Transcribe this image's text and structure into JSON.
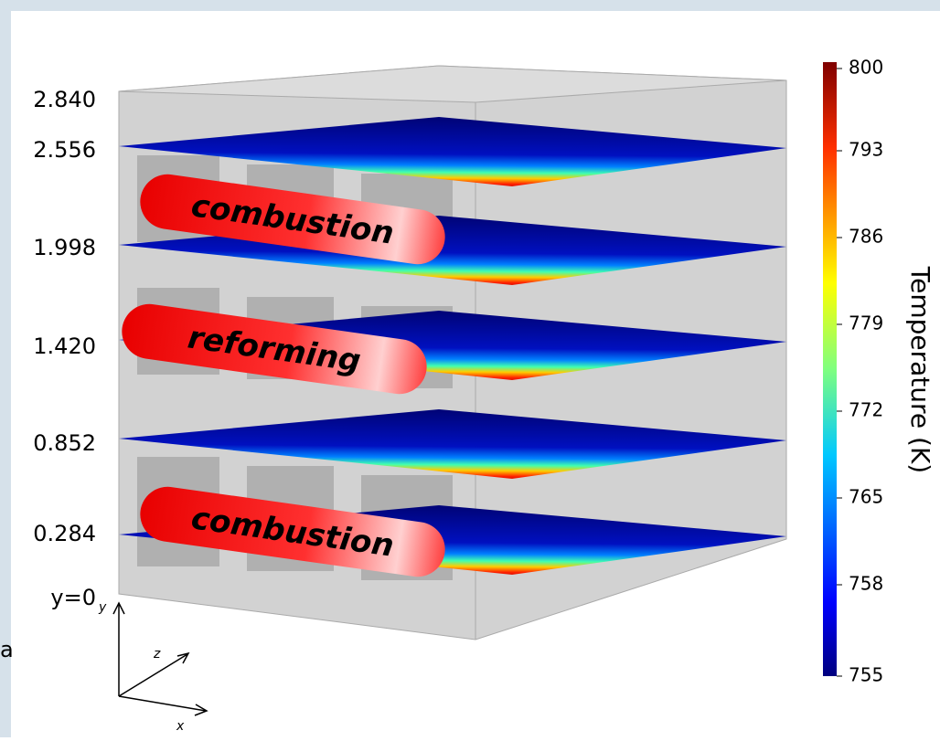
{
  "levels": [
    "2.840",
    "2.556",
    "1.998",
    "1.420",
    "0.852",
    "0.284"
  ],
  "origin_label": "y=0",
  "stray_text": "a",
  "zones": [
    "combustion",
    "reforming",
    "combustion"
  ],
  "axes": {
    "y": "y",
    "z": "z",
    "x": "x"
  },
  "colorbar": {
    "title": "Temperature (K)",
    "ticks": [
      800,
      793,
      786,
      779,
      772,
      765,
      758,
      755
    ]
  }
}
